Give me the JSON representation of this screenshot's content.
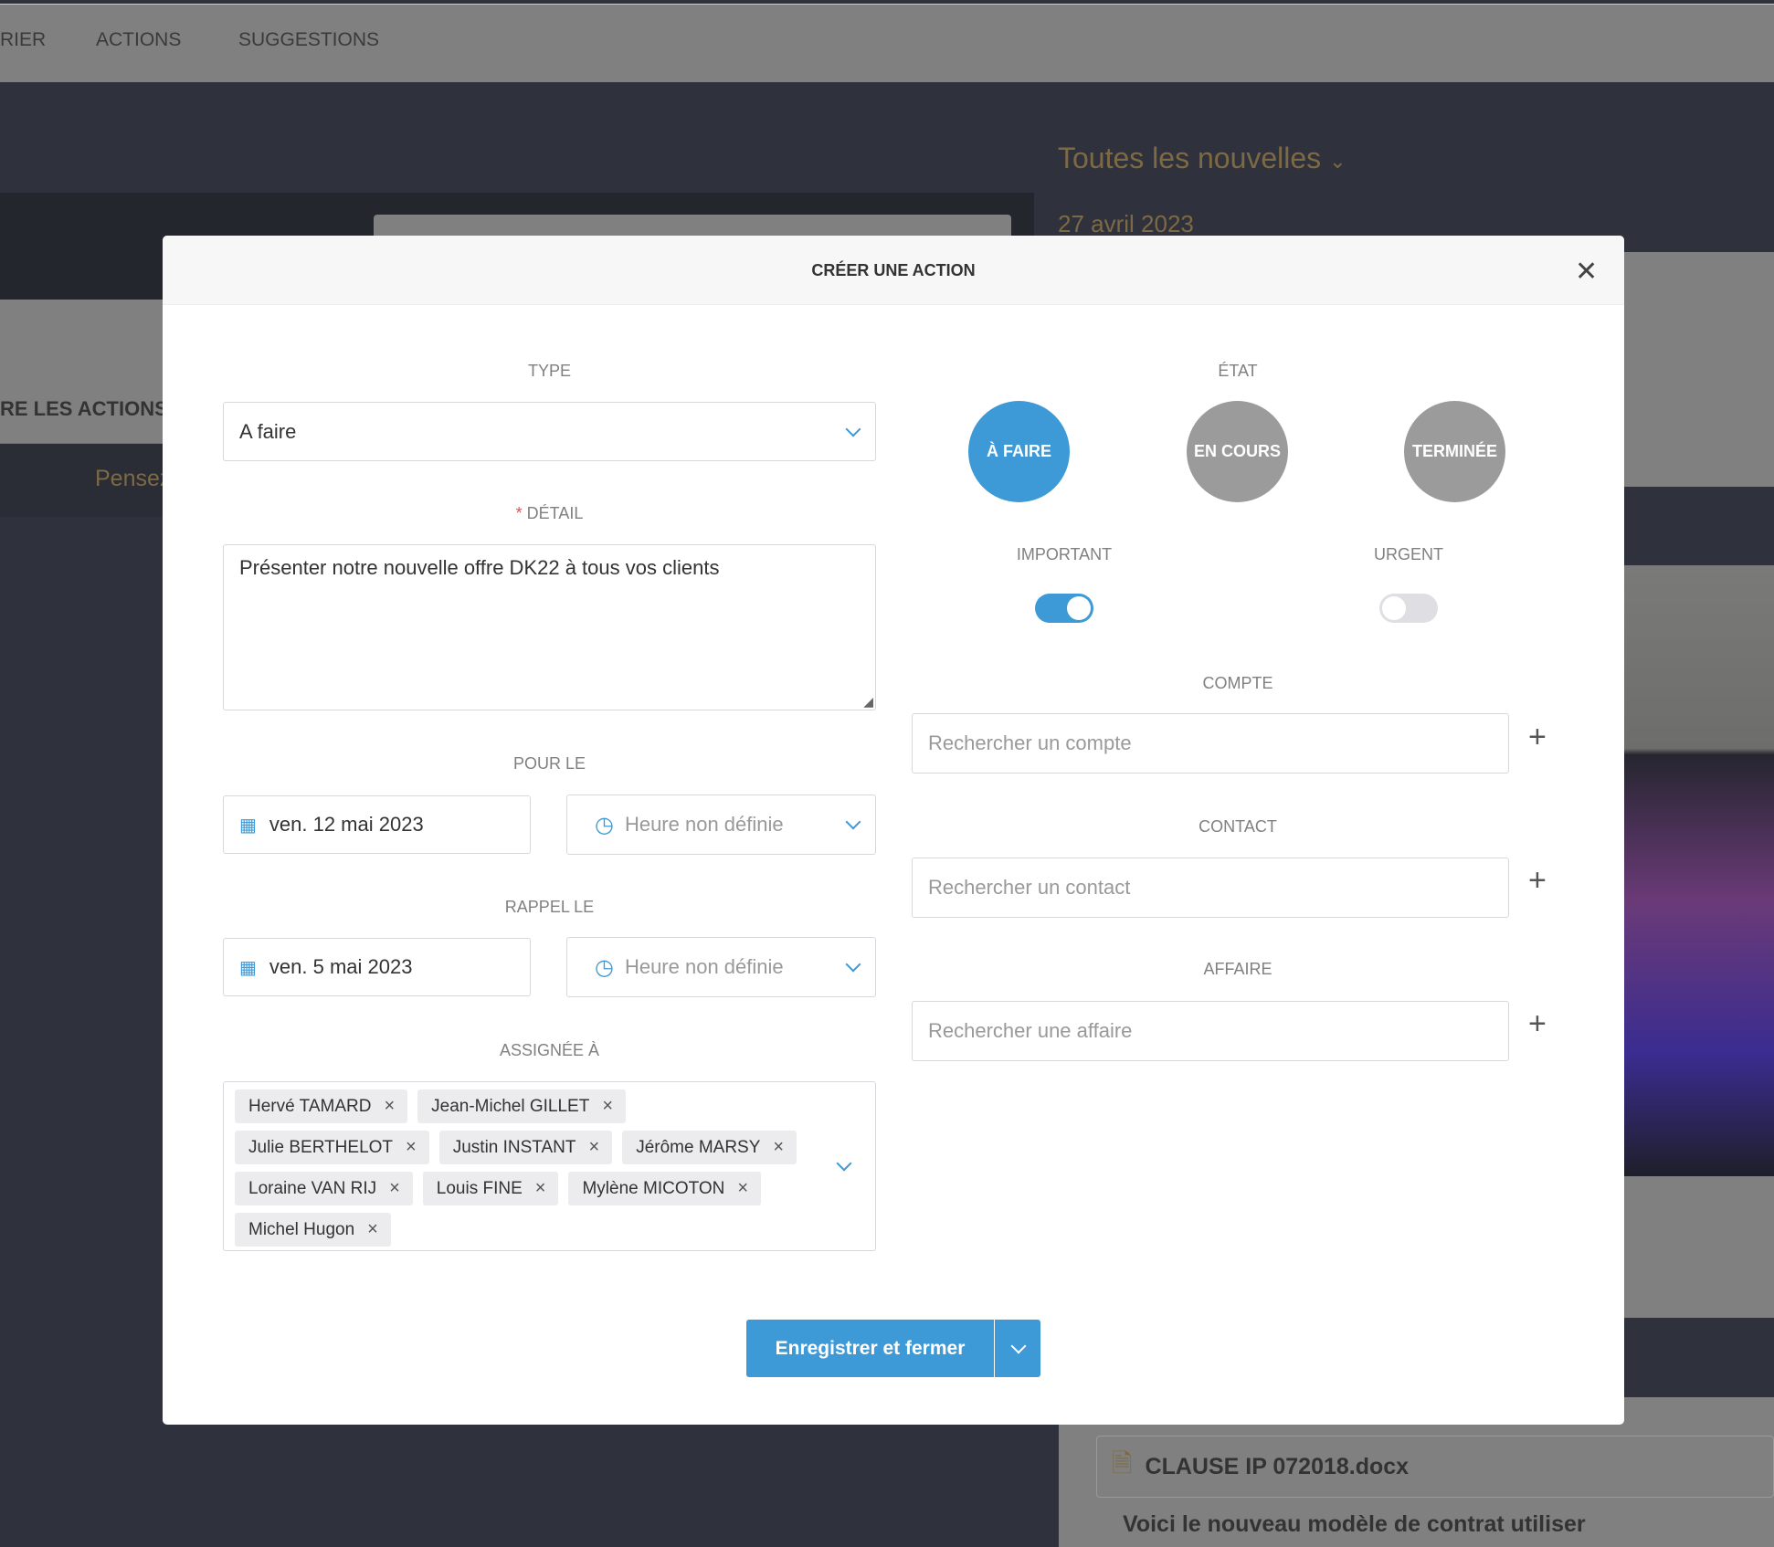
{
  "background": {
    "nav": [
      "RIER",
      "ACTIONS",
      "SUGGESTIONS"
    ],
    "news_filter": "Toutes les nouvelles",
    "news_date": "27 avril 2023",
    "actions_heading": "RE LES ACTIONS N",
    "reminder_text": "Pensez",
    "file_name": "CLAUSE IP 072018.docx",
    "post_text": "Voici le nouveau modèle de contrat utiliser"
  },
  "modal": {
    "title": "CRÉER UNE ACTION",
    "type": {
      "label": "TYPE",
      "value": "A faire"
    },
    "detail": {
      "required_mark": "*",
      "label": "DÉTAIL",
      "value": "Présenter notre nouvelle offre DK22 à tous vos clients"
    },
    "due": {
      "label": "POUR LE",
      "date": "ven. 12 mai 2023",
      "time_placeholder": "Heure non définie"
    },
    "reminder": {
      "label": "RAPPEL LE",
      "date": "ven. 5 mai 2023",
      "time_placeholder": "Heure non définie"
    },
    "assigned": {
      "label": "ASSIGNÉE À",
      "tags": [
        "Hervé TAMARD",
        "Jean-Michel GILLET",
        "Julie BERTHELOT",
        "Justin INSTANT",
        "Jérôme MARSY",
        "Loraine VAN RIJ",
        "Louis FINE",
        "Mylène MICOTON",
        "Michel Hugon"
      ]
    },
    "state": {
      "label": "ÉTAT",
      "options": [
        "À FAIRE",
        "EN COURS",
        "TERMINÉE"
      ],
      "selected": "À FAIRE"
    },
    "important": {
      "label": "IMPORTANT",
      "on": true
    },
    "urgent": {
      "label": "URGENT",
      "on": false
    },
    "account": {
      "label": "COMPTE",
      "placeholder": "Rechercher un compte"
    },
    "contact": {
      "label": "CONTACT",
      "placeholder": "Rechercher un contact"
    },
    "deal": {
      "label": "AFFAIRE",
      "placeholder": "Rechercher une affaire"
    },
    "save_label": "Enregistrer et fermer"
  },
  "colors": {
    "accent": "#3d9ad6",
    "inactive": "#9b9b9b"
  }
}
